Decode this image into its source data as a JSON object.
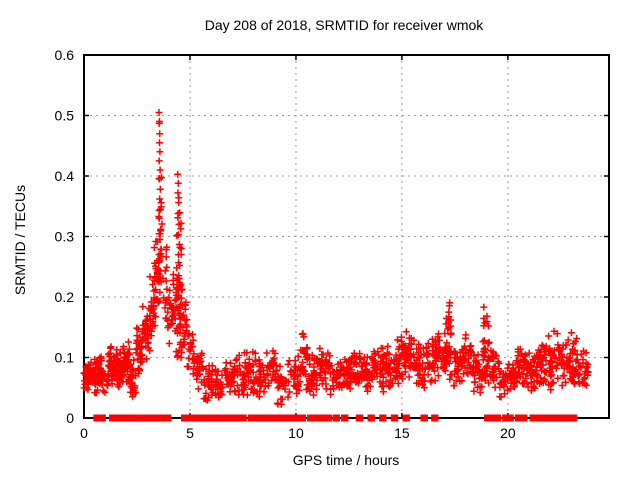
{
  "chart_data": {
    "type": "scatter",
    "title": "Day 208 of 2018, SRMTID for receiver wmok",
    "xlabel": "GPS time / hours",
    "ylabel": "SRMTID / TECUs",
    "xlim": [
      0,
      24.77
    ],
    "ylim": [
      0,
      0.6
    ],
    "xticks": [
      0,
      5,
      10,
      15,
      20
    ],
    "xtick_labels": [
      "0",
      "5",
      "10",
      "15",
      "20"
    ],
    "yticks": [
      0,
      0.1,
      0.2,
      0.3,
      0.4,
      0.5,
      0.6
    ],
    "ytick_labels": [
      "0",
      "0.1",
      "0.2",
      "0.3",
      "0.4",
      "0.5",
      "0.6"
    ],
    "grid": true,
    "legend": "none",
    "marker": "plus",
    "marker_color": "#ff0000",
    "grid_color": "#9a9a9a",
    "axis_color": "#000000",
    "background_color": "#ffffff",
    "peak_points": [
      [
        3.54,
        0.505
      ],
      [
        3.56,
        0.49
      ],
      [
        3.55,
        0.487
      ],
      [
        3.57,
        0.47
      ],
      [
        3.56,
        0.455
      ],
      [
        3.58,
        0.44
      ],
      [
        3.55,
        0.425
      ],
      [
        3.59,
        0.41
      ],
      [
        3.56,
        0.395
      ],
      [
        3.6,
        0.378
      ],
      [
        3.57,
        0.362
      ],
      [
        3.61,
        0.345
      ],
      [
        3.55,
        0.33
      ],
      [
        3.62,
        0.312
      ],
      [
        3.58,
        0.295
      ],
      [
        3.63,
        0.278
      ],
      [
        3.56,
        0.26
      ],
      [
        3.6,
        0.243
      ],
      [
        3.64,
        0.225
      ],
      [
        3.58,
        0.208
      ],
      [
        4.42,
        0.403
      ],
      [
        4.45,
        0.388
      ],
      [
        4.43,
        0.372
      ],
      [
        4.47,
        0.356
      ],
      [
        4.44,
        0.338
      ],
      [
        4.48,
        0.32
      ],
      [
        4.45,
        0.303
      ],
      [
        4.5,
        0.287
      ],
      [
        4.46,
        0.27
      ],
      [
        4.51,
        0.252
      ],
      [
        4.47,
        0.235
      ],
      [
        4.52,
        0.218
      ],
      [
        4.44,
        0.2
      ],
      [
        4.53,
        0.185
      ],
      [
        4.49,
        0.17
      ],
      [
        4.55,
        0.155
      ],
      [
        4.41,
        0.14
      ],
      [
        4.56,
        0.125
      ],
      [
        4.5,
        0.112
      ],
      [
        4.58,
        0.1
      ]
    ],
    "noise_clusters": [
      [
        0.0,
        0.45,
        0.045,
        0.095,
        40,
        1
      ],
      [
        0.45,
        0.9,
        0.03,
        0.105,
        55,
        1
      ],
      [
        0.9,
        1.15,
        0.04,
        0.08,
        12,
        1
      ],
      [
        1.15,
        1.55,
        0.05,
        0.125,
        50,
        1
      ],
      [
        1.55,
        1.85,
        0.04,
        0.115,
        30,
        1
      ],
      [
        1.85,
        2.15,
        0.05,
        0.13,
        35,
        1
      ],
      [
        2.15,
        2.45,
        0.025,
        0.1,
        25,
        1
      ],
      [
        2.45,
        2.75,
        0.07,
        0.155,
        30,
        1
      ],
      [
        2.75,
        3.05,
        0.09,
        0.19,
        28,
        1
      ],
      [
        3.05,
        3.3,
        0.11,
        0.25,
        28,
        1
      ],
      [
        3.3,
        3.55,
        0.14,
        0.33,
        25,
        1
      ],
      [
        3.5,
        3.7,
        0.2,
        0.5,
        20,
        1.4
      ],
      [
        3.7,
        3.95,
        0.13,
        0.3,
        16,
        1.2
      ],
      [
        3.95,
        4.2,
        0.1,
        0.24,
        16,
        1
      ],
      [
        4.2,
        4.35,
        0.12,
        0.27,
        12,
        1
      ],
      [
        4.35,
        4.6,
        0.1,
        0.42,
        40,
        1.5
      ],
      [
        4.6,
        4.85,
        0.09,
        0.22,
        20,
        1.2
      ],
      [
        4.85,
        5.15,
        0.07,
        0.16,
        16,
        1
      ],
      [
        5.15,
        5.65,
        0.04,
        0.12,
        26,
        1
      ],
      [
        5.65,
        6.1,
        0.025,
        0.09,
        30,
        1
      ],
      [
        6.1,
        6.6,
        0.03,
        0.085,
        26,
        1
      ],
      [
        6.6,
        7.1,
        0.035,
        0.1,
        30,
        1
      ],
      [
        7.1,
        7.6,
        0.03,
        0.115,
        30,
        1
      ],
      [
        7.6,
        8.1,
        0.035,
        0.12,
        32,
        1
      ],
      [
        8.1,
        8.6,
        0.03,
        0.1,
        30,
        1
      ],
      [
        8.6,
        9.1,
        0.04,
        0.12,
        30,
        1
      ],
      [
        9.1,
        9.6,
        0.02,
        0.09,
        24,
        1
      ],
      [
        9.6,
        10.1,
        0.03,
        0.1,
        30,
        1
      ],
      [
        10.1,
        10.6,
        0.04,
        0.145,
        34,
        1
      ],
      [
        10.6,
        11.1,
        0.03,
        0.12,
        34,
        1
      ],
      [
        11.1,
        11.6,
        0.04,
        0.13,
        34,
        1
      ],
      [
        11.6,
        12.1,
        0.03,
        0.1,
        30,
        1
      ],
      [
        12.1,
        12.6,
        0.04,
        0.11,
        34,
        1
      ],
      [
        12.6,
        13.1,
        0.05,
        0.12,
        34,
        1
      ],
      [
        13.1,
        13.6,
        0.04,
        0.11,
        34,
        1
      ],
      [
        13.6,
        14.1,
        0.05,
        0.125,
        34,
        1
      ],
      [
        14.1,
        14.6,
        0.04,
        0.13,
        34,
        1
      ],
      [
        14.6,
        15.1,
        0.05,
        0.14,
        36,
        1
      ],
      [
        15.1,
        15.6,
        0.05,
        0.15,
        36,
        1
      ],
      [
        15.6,
        16.1,
        0.04,
        0.13,
        34,
        1
      ],
      [
        16.1,
        16.6,
        0.05,
        0.14,
        34,
        1
      ],
      [
        16.6,
        17.0,
        0.05,
        0.15,
        30,
        1
      ],
      [
        17.0,
        17.35,
        0.06,
        0.2,
        36,
        1.3
      ],
      [
        17.35,
        17.85,
        0.04,
        0.13,
        34,
        1
      ],
      [
        17.85,
        18.35,
        0.05,
        0.14,
        34,
        1
      ],
      [
        18.35,
        18.8,
        0.03,
        0.12,
        30,
        1
      ],
      [
        18.8,
        19.2,
        0.05,
        0.195,
        36,
        1.3
      ],
      [
        19.2,
        19.6,
        0.04,
        0.12,
        24,
        1
      ],
      [
        19.6,
        20.0,
        0.03,
        0.095,
        24,
        1
      ],
      [
        20.0,
        20.45,
        0.04,
        0.1,
        30,
        1
      ],
      [
        20.45,
        20.9,
        0.05,
        0.12,
        34,
        1
      ],
      [
        20.9,
        21.4,
        0.04,
        0.11,
        34,
        1
      ],
      [
        21.4,
        21.9,
        0.05,
        0.13,
        34,
        1
      ],
      [
        21.9,
        22.4,
        0.04,
        0.15,
        36,
        1.2
      ],
      [
        22.4,
        22.9,
        0.05,
        0.13,
        34,
        1
      ],
      [
        22.9,
        23.35,
        0.04,
        0.16,
        36,
        1.2
      ],
      [
        23.35,
        23.8,
        0.05,
        0.12,
        24,
        1
      ]
    ],
    "zero_marker_hours": [
      0.62,
      0.68,
      0.74,
      0.8,
      0.86,
      1.35,
      1.62,
      1.85,
      2.1,
      2.32,
      2.55,
      2.9,
      3.1,
      3.35,
      3.65,
      3.95,
      4.75,
      4.92,
      5.1,
      5.3,
      5.62,
      5.8,
      5.92,
      6.04,
      6.16,
      6.4,
      6.65,
      6.9,
      7.2,
      7.5,
      7.9,
      8.15,
      8.4,
      8.6,
      8.82,
      8.94,
      9.06,
      9.3,
      9.6,
      9.88,
      10.0,
      10.12,
      10.3,
      10.7,
      11.0,
      11.3,
      11.52,
      11.9,
      12.3,
      13.0,
      13.55,
      14.1,
      14.65,
      15.2,
      16.05,
      16.55,
      19.05,
      19.17,
      19.35,
      19.5,
      19.9,
      20.1,
      20.5,
      20.75,
      21.2,
      21.42,
      21.7,
      22.05,
      22.3,
      22.6,
      22.85,
      22.97,
      23.1
    ]
  }
}
